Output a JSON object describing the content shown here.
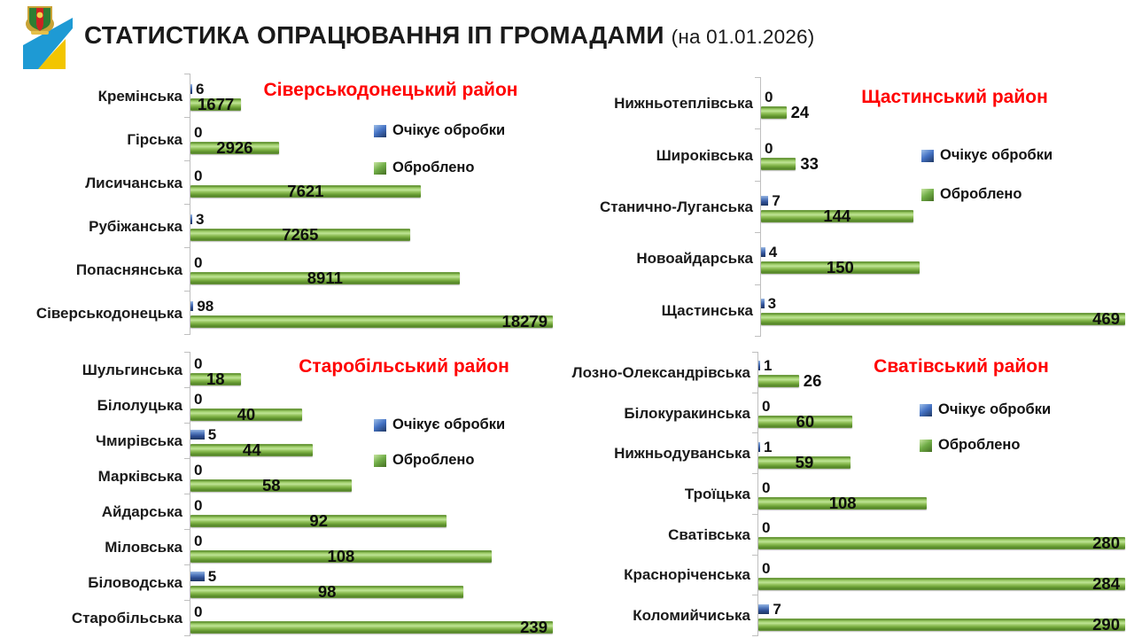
{
  "header": {
    "title": "СТАТИСТИКА ОПРАЦЮВАННЯ ІП ГРОМАДАМИ",
    "subtitle": "(на 01.01.2026)"
  },
  "colors": {
    "chart_title": "#FF0000",
    "pending_series": "#4472C4",
    "processed_series": "#70AD47",
    "axis": "#BFBFBF"
  },
  "chart_data": [
    {
      "type": "bar",
      "orientation": "horizontal",
      "title": "Сіверськодонецький район",
      "categories": [
        "Кремінська",
        "Гірська",
        "Лисичанська",
        "Рубіжанська",
        "Попаснянська",
        "Сіверськодонецька"
      ],
      "series": [
        {
          "name": "Очікує обробки",
          "values": [
            6,
            0,
            0,
            3,
            0,
            98
          ]
        },
        {
          "name": "Оброблено",
          "values": [
            1677,
            2926,
            7621,
            7265,
            8911,
            18279
          ]
        }
      ],
      "xmax": 12000,
      "grid": false,
      "legend_position": "inside-right"
    },
    {
      "type": "bar",
      "orientation": "horizontal",
      "title": "Щастинський район",
      "categories": [
        "Нижньотеплівська",
        "Широківська",
        "Станично-Луганська",
        "Новоайдарська",
        "Щастинська"
      ],
      "series": [
        {
          "name": "Очікує обробки",
          "values": [
            0,
            0,
            7,
            4,
            3
          ]
        },
        {
          "name": "Оброблено",
          "values": [
            24,
            33,
            144,
            150,
            469
          ]
        }
      ],
      "xmax": 345,
      "grid": false,
      "legend_position": "inside-right"
    },
    {
      "type": "bar",
      "orientation": "horizontal",
      "title": "Старобільський район",
      "categories": [
        "Шульгинська",
        "Білолуцька",
        "Чмирівська",
        "Марківська",
        "Айдарська",
        "Міловська",
        "Біловодська",
        "Старобільська"
      ],
      "series": [
        {
          "name": "Очікує обробки",
          "values": [
            0,
            0,
            5,
            0,
            0,
            0,
            5,
            0
          ]
        },
        {
          "name": "Оброблено",
          "values": [
            18,
            40,
            44,
            58,
            92,
            108,
            98,
            239
          ]
        }
      ],
      "xmax": 130,
      "grid": false,
      "legend_position": "inside-right"
    },
    {
      "type": "bar",
      "orientation": "horizontal",
      "title": "Сватівський район",
      "categories": [
        "Лозно-Олександрівська",
        "Білокуракинська",
        "Нижньодуванська",
        "Троїцька",
        "Сватівська",
        "Красноріченська",
        "Коломийчиська"
      ],
      "series": [
        {
          "name": "Очікує обробки",
          "values": [
            1,
            0,
            1,
            0,
            0,
            0,
            7
          ]
        },
        {
          "name": "Оброблено",
          "values": [
            26,
            60,
            59,
            108,
            280,
            284,
            290
          ]
        }
      ],
      "xmax": 235,
      "grid": false,
      "legend_position": "inside-right"
    }
  ]
}
